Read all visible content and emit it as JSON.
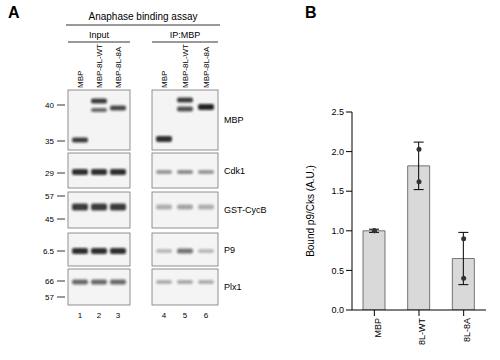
{
  "panel_labels": [
    "A",
    "B"
  ],
  "panel_a": {
    "title": "Anaphase binding assay",
    "groups": [
      "Input",
      "IP:MBP"
    ],
    "lanes": [
      "MBP",
      "MBP-8L-WT",
      "MBP-8L-8A"
    ],
    "lane_numbers": [
      1,
      2,
      3,
      4,
      5,
      6
    ],
    "rows": [
      {
        "name": "MBP",
        "markers": [
          40,
          35
        ]
      },
      {
        "name": "Cdk1",
        "markers": [
          29
        ]
      },
      {
        "name": "GST-CycB",
        "markers": [
          57,
          45
        ]
      },
      {
        "name": "P9",
        "markers": [
          6.5
        ]
      },
      {
        "name": "Plx1",
        "markers": [
          66,
          57
        ]
      }
    ]
  },
  "chart_data": {
    "type": "bar",
    "ylabel": "Bound p9/Cks (A.U.)",
    "categories": [
      "MBP",
      "8L-WT",
      "8L-8A"
    ],
    "values": [
      1.0,
      1.82,
      0.65
    ],
    "error": [
      0.02,
      0.3,
      0.33
    ],
    "points": [
      [
        1.0,
        1.0
      ],
      [
        2.03,
        1.62
      ],
      [
        0.9,
        0.4
      ]
    ],
    "color": "#d9d9d9",
    "ylim": [
      0,
      2.5
    ],
    "yticks": [
      {
        "value": 0,
        "label": "0.0"
      },
      {
        "value": 0.5,
        "label": "0.5"
      },
      {
        "value": 1,
        "label": "1.0"
      },
      {
        "value": 1.5,
        "label": "1.5"
      },
      {
        "value": 2,
        "label": "2.0"
      },
      {
        "value": 2.5,
        "label": "2.5"
      }
    ]
  }
}
